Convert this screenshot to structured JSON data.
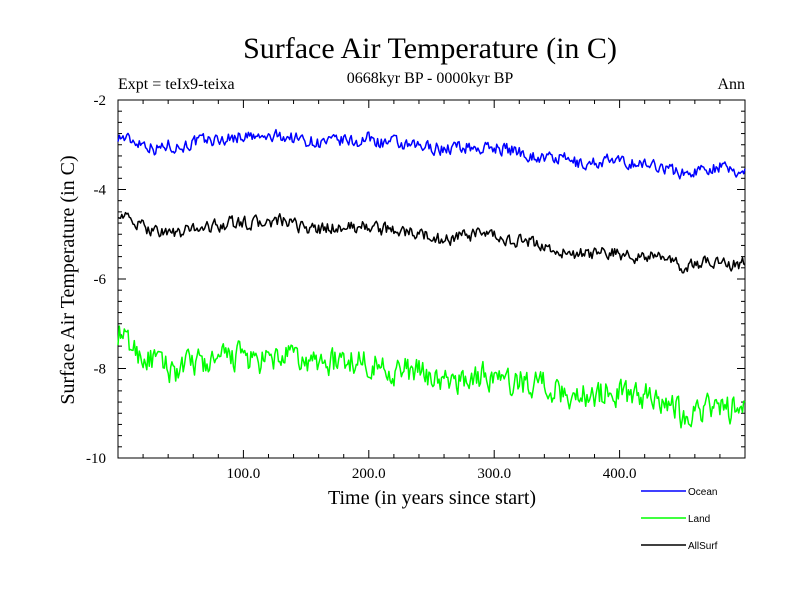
{
  "chart_data": {
    "type": "line",
    "title": "Surface Air Temperature (in C)",
    "subtitle": "0668kyr BP - 0000kyr BP",
    "left_annotation": "Expt = teIx9-teixa",
    "right_annotation": "Ann",
    "xlabel": "Time (in years since start)",
    "ylabel": "Surface Air Temperature (in C)",
    "xlim": [
      0,
      500
    ],
    "ylim": [
      -10,
      -2
    ],
    "x_ticks": [
      100,
      200,
      300,
      400
    ],
    "x_tick_labels": [
      "100.0",
      "200.0",
      "300.0",
      "400.0"
    ],
    "y_ticks": [
      -10,
      -8,
      -6,
      -4,
      -2
    ],
    "y_tick_labels": [
      "-10",
      "-8",
      "-6",
      "-4",
      "-2"
    ],
    "grid": false,
    "legend_position": "bottom-right",
    "x": [
      0,
      10,
      20,
      30,
      40,
      50,
      60,
      70,
      80,
      90,
      100,
      110,
      120,
      130,
      140,
      150,
      160,
      170,
      180,
      190,
      200,
      210,
      220,
      230,
      240,
      250,
      260,
      270,
      280,
      290,
      300,
      310,
      320,
      330,
      340,
      350,
      360,
      370,
      380,
      390,
      400,
      410,
      420,
      430,
      440,
      450,
      460,
      470,
      480,
      490,
      500
    ],
    "series": [
      {
        "name": "Ocean",
        "color": "#0000ff",
        "values": [
          -2.8,
          -2.9,
          -2.95,
          -3.1,
          -3.0,
          -3.05,
          -2.95,
          -2.9,
          -2.9,
          -2.85,
          -2.8,
          -2.85,
          -2.85,
          -2.8,
          -2.85,
          -2.9,
          -2.95,
          -2.95,
          -2.9,
          -2.95,
          -2.85,
          -2.95,
          -2.95,
          -3.05,
          -3.05,
          -3.05,
          -3.1,
          -3.05,
          -3.05,
          -3.1,
          -3.05,
          -3.1,
          -3.15,
          -3.25,
          -3.3,
          -3.3,
          -3.35,
          -3.45,
          -3.4,
          -3.35,
          -3.4,
          -3.4,
          -3.45,
          -3.45,
          -3.55,
          -3.65,
          -3.6,
          -3.5,
          -3.5,
          -3.6,
          -3.6
        ]
      },
      {
        "name": "Land",
        "color": "#00ff00",
        "values": [
          -7.2,
          -7.5,
          -7.75,
          -7.85,
          -8.0,
          -8.05,
          -7.85,
          -7.9,
          -7.85,
          -7.75,
          -7.7,
          -7.9,
          -7.85,
          -7.75,
          -7.75,
          -7.9,
          -7.85,
          -7.85,
          -7.85,
          -7.8,
          -7.85,
          -7.95,
          -8.05,
          -8.05,
          -8.1,
          -8.15,
          -8.35,
          -8.25,
          -8.25,
          -8.15,
          -8.2,
          -8.35,
          -8.3,
          -8.3,
          -8.3,
          -8.55,
          -8.6,
          -8.55,
          -8.6,
          -8.5,
          -8.55,
          -8.6,
          -8.6,
          -8.6,
          -8.75,
          -9.05,
          -8.9,
          -8.85,
          -8.9,
          -8.9,
          -8.85
        ]
      },
      {
        "name": "AllSurf",
        "color": "#000000",
        "values": [
          -4.5,
          -4.7,
          -4.85,
          -4.9,
          -4.95,
          -5.0,
          -4.85,
          -4.85,
          -4.8,
          -4.75,
          -4.75,
          -4.75,
          -4.75,
          -4.7,
          -4.8,
          -4.85,
          -4.9,
          -4.85,
          -4.85,
          -4.85,
          -4.8,
          -4.9,
          -4.9,
          -4.95,
          -5.0,
          -5.05,
          -5.15,
          -5.05,
          -5.05,
          -5.0,
          -5.05,
          -5.15,
          -5.15,
          -5.2,
          -5.25,
          -5.4,
          -5.45,
          -5.45,
          -5.45,
          -5.4,
          -5.45,
          -5.5,
          -5.5,
          -5.5,
          -5.6,
          -5.75,
          -5.7,
          -5.6,
          -5.6,
          -5.7,
          -5.65
        ]
      }
    ]
  }
}
